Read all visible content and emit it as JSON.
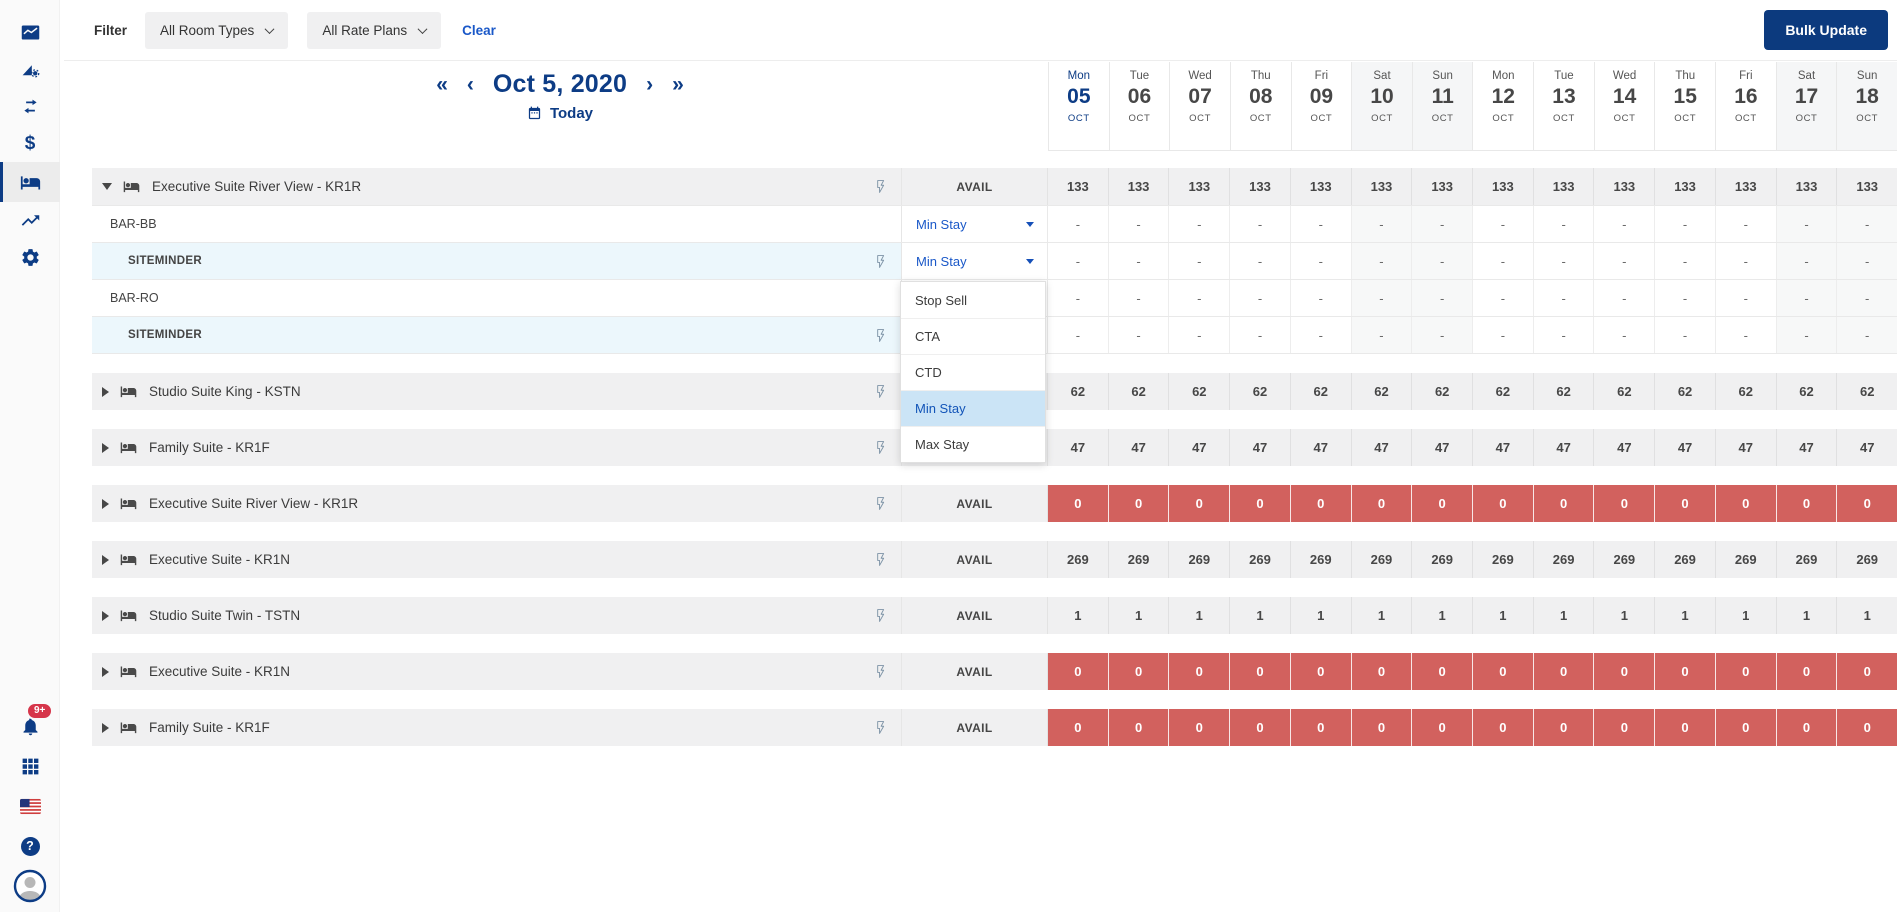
{
  "colors": {
    "navy_accent": "#0d3c85",
    "button_navy": "#0c3a7e",
    "link_blue": "#1a58c8",
    "red_cell": "#d2615e",
    "row_gray": "#f0f0f1",
    "siteminder_row_blue": "#ecf7fc",
    "menu_selected_bg": "#cbe4f6",
    "badge_red": "#d6354a"
  },
  "sidebar": {
    "icons": [
      "area-chart-icon",
      "report-settings-icon",
      "swap-arrows-icon",
      "dollar-icon",
      "rooms-bed-icon",
      "trending-up-icon",
      "settings-gear-icon"
    ],
    "bottom_icons": [
      "notifications-bell-icon",
      "apps-grid-icon",
      "language-flag-icon",
      "help-icon",
      "user-avatar"
    ],
    "active_item": "rooms-bed-icon",
    "notification_badge": "9+",
    "help_glyph": "?",
    "dollar_glyph": "$"
  },
  "filter_bar": {
    "label": "Filter",
    "room_types_value": "All Room Types",
    "rate_plans_value": "All Rate Plans",
    "clear_label": "Clear",
    "bulk_update_label": "Bulk Update"
  },
  "date_nav": {
    "fast_back": "«",
    "back": "‹",
    "title": "Oct 5, 2020",
    "forward": "›",
    "fast_forward": "»",
    "today_label": "Today"
  },
  "dates": [
    {
      "dow": "Mon",
      "day": "05",
      "month": "OCT",
      "today": true,
      "weekend": false
    },
    {
      "dow": "Tue",
      "day": "06",
      "month": "OCT",
      "today": false,
      "weekend": false
    },
    {
      "dow": "Wed",
      "day": "07",
      "month": "OCT",
      "today": false,
      "weekend": false
    },
    {
      "dow": "Thu",
      "day": "08",
      "month": "OCT",
      "today": false,
      "weekend": false
    },
    {
      "dow": "Fri",
      "day": "09",
      "month": "OCT",
      "today": false,
      "weekend": false
    },
    {
      "dow": "Sat",
      "day": "10",
      "month": "OCT",
      "today": false,
      "weekend": true
    },
    {
      "dow": "Sun",
      "day": "11",
      "month": "OCT",
      "today": false,
      "weekend": true
    },
    {
      "dow": "Mon",
      "day": "12",
      "month": "OCT",
      "today": false,
      "weekend": false
    },
    {
      "dow": "Tue",
      "day": "13",
      "month": "OCT",
      "today": false,
      "weekend": false
    },
    {
      "dow": "Wed",
      "day": "14",
      "month": "OCT",
      "today": false,
      "weekend": false
    },
    {
      "dow": "Thu",
      "day": "15",
      "month": "OCT",
      "today": false,
      "weekend": false
    },
    {
      "dow": "Fri",
      "day": "16",
      "month": "OCT",
      "today": false,
      "weekend": false
    },
    {
      "dow": "Sat",
      "day": "17",
      "month": "OCT",
      "today": false,
      "weekend": true
    },
    {
      "dow": "Sun",
      "day": "18",
      "month": "OCT",
      "today": false,
      "weekend": true
    }
  ],
  "grid": {
    "avail_label": "AVAIL",
    "dash": "-",
    "rooms": [
      {
        "name": "Executive Suite River View - KR1R",
        "expanded": true,
        "variant": "gray",
        "value": "133",
        "plans": [
          {
            "label": "BAR-BB",
            "indent": false,
            "lightning": false,
            "control": "Min Stay"
          },
          {
            "label": "SITEMINDER",
            "indent": true,
            "lightning": true,
            "control": "Min Stay"
          },
          {
            "label": "BAR-RO",
            "indent": false,
            "lightning": false,
            "control": "Min Stay"
          },
          {
            "label": "SITEMINDER",
            "indent": true,
            "lightning": true,
            "control": "Min Stay"
          }
        ]
      },
      {
        "name": "Studio Suite King - KSTN",
        "expanded": false,
        "variant": "gray",
        "value": "62"
      },
      {
        "name": "Family Suite - KR1F",
        "expanded": false,
        "variant": "gray",
        "value": "47"
      },
      {
        "name": "Executive Suite River View - KR1R",
        "expanded": false,
        "variant": "red",
        "value": "0"
      },
      {
        "name": "Executive Suite - KR1N",
        "expanded": false,
        "variant": "gray",
        "value": "269"
      },
      {
        "name": "Studio Suite Twin - TSTN",
        "expanded": false,
        "variant": "gray",
        "value": "1"
      },
      {
        "name": "Executive Suite - KR1N",
        "expanded": false,
        "variant": "red",
        "value": "0"
      },
      {
        "name": "Family Suite - KR1F",
        "expanded": false,
        "variant": "red",
        "value": "0"
      }
    ]
  },
  "menu": {
    "options": [
      "Stop Sell",
      "CTA",
      "CTD",
      "Min Stay",
      "Max Stay"
    ],
    "selected": "Min Stay"
  }
}
